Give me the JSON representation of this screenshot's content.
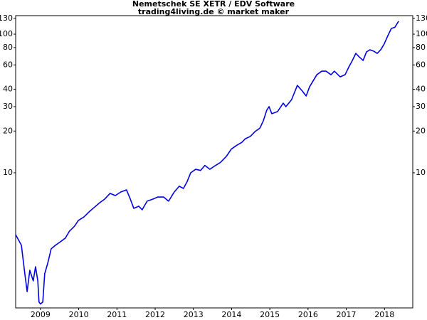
{
  "chart_data": {
    "type": "line",
    "title": "Nemetschek SE XETR / EDV Software",
    "subtitle": "trading4living.de © market maker",
    "x": [
      2008.35,
      2008.5,
      2008.59,
      2008.65,
      2008.72,
      2008.81,
      2008.87,
      2008.93,
      2008.96,
      2009.0,
      2009.06,
      2009.11,
      2009.19,
      2009.28,
      2009.39,
      2009.52,
      2009.65,
      2009.76,
      2009.89,
      2009.99,
      2010.14,
      2010.27,
      2010.4,
      2010.55,
      2010.68,
      2010.82,
      2010.96,
      2011.1,
      2011.25,
      2011.35,
      2011.44,
      2011.57,
      2011.66,
      2011.79,
      2011.94,
      2012.07,
      2012.22,
      2012.35,
      2012.5,
      2012.63,
      2012.74,
      2012.84,
      2012.93,
      2013.06,
      2013.19,
      2013.3,
      2013.43,
      2013.58,
      2013.71,
      2013.86,
      2013.99,
      2014.12,
      2014.27,
      2014.36,
      2014.49,
      2014.61,
      2014.74,
      2014.83,
      2014.92,
      2014.98,
      2015.05,
      2015.2,
      2015.35,
      2015.42,
      2015.57,
      2015.72,
      2015.85,
      2015.95,
      2016.04,
      2016.23,
      2016.36,
      2016.47,
      2016.6,
      2016.69,
      2016.84,
      2016.97,
      2017.06,
      2017.16,
      2017.25,
      2017.34,
      2017.44,
      2017.53,
      2017.62,
      2017.72,
      2017.81,
      2017.9,
      2017.99,
      2018.09,
      2018.18,
      2018.27,
      2018.37
    ],
    "values": [
      3.58,
      3.0,
      1.87,
      1.39,
      1.98,
      1.66,
      2.1,
      1.66,
      1.17,
      1.13,
      1.17,
      1.87,
      2.23,
      2.83,
      3.0,
      3.18,
      3.38,
      3.8,
      4.12,
      4.53,
      4.81,
      5.22,
      5.61,
      6.09,
      6.46,
      7.1,
      6.85,
      7.27,
      7.53,
      6.46,
      5.54,
      5.74,
      5.41,
      6.24,
      6.46,
      6.69,
      6.69,
      6.24,
      7.27,
      8.0,
      7.71,
      8.68,
      10.0,
      10.6,
      10.4,
      11.3,
      10.6,
      11.3,
      11.9,
      13.1,
      14.8,
      15.7,
      16.6,
      17.6,
      18.3,
      19.8,
      21.0,
      23.7,
      28.3,
      30.0,
      26.7,
      27.6,
      31.8,
      30.0,
      33.7,
      42.7,
      38.9,
      35.8,
      41.7,
      51.0,
      54.1,
      54.1,
      51.0,
      54.1,
      49.2,
      51.0,
      57.4,
      64.6,
      72.7,
      68.5,
      64.6,
      74.5,
      77.1,
      75.3,
      72.7,
      77.1,
      84.7,
      97.7,
      110,
      112,
      124
    ],
    "color": "#0000e6",
    "xlim": [
      2008.35,
      2018.74
    ],
    "xticks": [
      2009,
      2010,
      2011,
      2012,
      2013,
      2014,
      2015,
      2016,
      2017,
      2018
    ],
    "ylim": [
      1.06,
      136
    ],
    "yticks": [
      10,
      20,
      30,
      40,
      60,
      80,
      100,
      130
    ],
    "y_log_scale": true
  }
}
